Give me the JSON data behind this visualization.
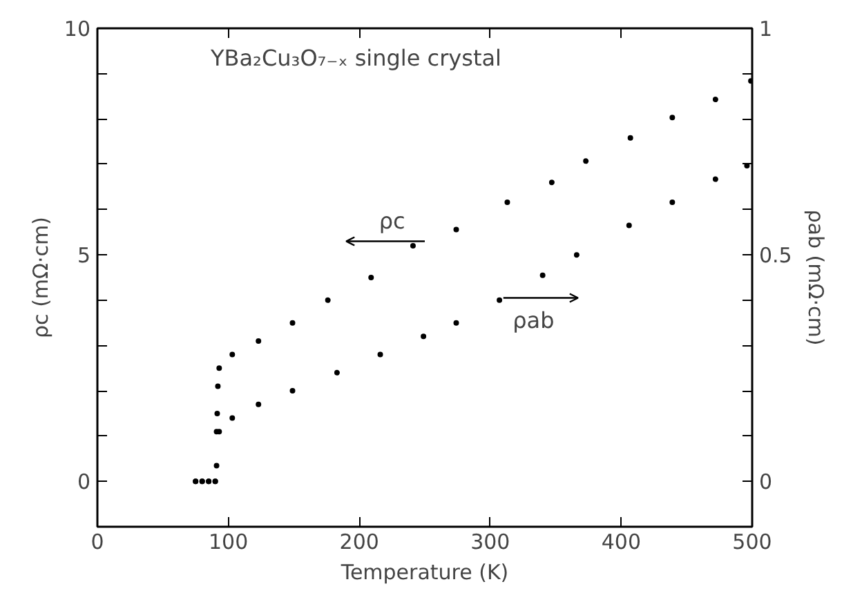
{
  "chart_data": {
    "type": "scatter",
    "xlabel": "Temperature (K)",
    "ylabel": "ρc (mΩ·cm)",
    "y2label": "ρab (mΩ·cm)",
    "annotations": [
      "YBa₂Cu₃O₇₋ₓ single crystal",
      "ρc",
      "ρab"
    ],
    "xlim": [
      0,
      500
    ],
    "xticks": [
      0,
      100,
      200,
      300,
      400,
      500
    ],
    "ylim": [
      -1,
      10
    ],
    "yticks": [
      0,
      {
        "value": 1,
        "label": null
      },
      {
        "value": 2,
        "label": null
      },
      {
        "value": 3,
        "label": null
      },
      {
        "value": 4,
        "label": null
      },
      5,
      {
        "value": 6,
        "label": null
      },
      {
        "value": 7,
        "label": null
      },
      {
        "value": 8,
        "label": null
      },
      {
        "value": 9,
        "label": null
      },
      10
    ],
    "y2lim": [
      -0.1,
      1
    ],
    "y2ticks": [
      0,
      {
        "value": 0.1,
        "label": null
      },
      {
        "value": 0.2,
        "label": null
      },
      {
        "value": 0.3,
        "label": null
      },
      {
        "value": 0.4,
        "label": null
      },
      0.5,
      {
        "value": 0.6,
        "label": null
      },
      {
        "value": 0.7,
        "label": null
      },
      {
        "value": 0.8,
        "label": null
      },
      {
        "value": 0.9,
        "label": null
      },
      1
    ],
    "grid": false,
    "marker": "circle",
    "series": [
      {
        "color": "#000000",
        "x": [
          75,
          80,
          85,
          90,
          91,
          91.5,
          92,
          93,
          103,
          123,
          149,
          176,
          209,
          241,
          274,
          313,
          347,
          373,
          407,
          439,
          472,
          499
        ],
        "values": [
          0,
          0,
          0,
          0,
          1.1,
          1.5,
          2.1,
          2.5,
          2.8,
          3.1,
          3.5,
          4.0,
          4.5,
          5.2,
          5.56,
          6.16,
          6.6,
          7.07,
          7.58,
          8.03,
          8.43,
          8.84
        ]
      },
      {
        "color": "#000000",
        "axis": "y2",
        "x": [
          75,
          80,
          85,
          90,
          91,
          93,
          103,
          123,
          149,
          183,
          216,
          249,
          274,
          307,
          340,
          366,
          406,
          439,
          472,
          496
        ],
        "values": [
          0,
          0,
          0,
          0,
          0.035,
          0.11,
          0.14,
          0.17,
          0.2,
          0.24,
          0.28,
          0.32,
          0.35,
          0.4,
          0.455,
          0.5,
          0.565,
          0.616,
          0.667,
          0.697
        ]
      }
    ]
  }
}
